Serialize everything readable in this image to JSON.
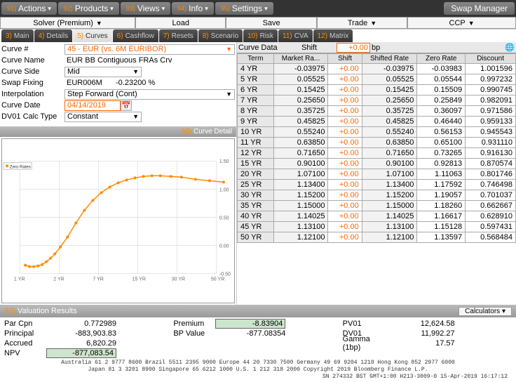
{
  "menubar": {
    "items": [
      {
        "num": "91)",
        "label": "Actions"
      },
      {
        "num": "92)",
        "label": "Products"
      },
      {
        "num": "93)",
        "label": "Views"
      },
      {
        "num": "94)",
        "label": "Info"
      },
      {
        "num": "95)",
        "label": "Settings"
      }
    ],
    "title": "Swap Manager"
  },
  "toolbar2": {
    "solver": "Solver (Premium)",
    "load": "Load",
    "save": "Save",
    "trade": "Trade",
    "ccp": "CCP"
  },
  "tabs": [
    {
      "num": "3)",
      "label": "Main"
    },
    {
      "num": "4)",
      "label": "Details"
    },
    {
      "num": "5)",
      "label": "Curves"
    },
    {
      "num": "6)",
      "label": "Cashflow"
    },
    {
      "num": "7)",
      "label": "Resets"
    },
    {
      "num": "8)",
      "label": "Scenario"
    },
    {
      "num": "10)",
      "label": "Risk"
    },
    {
      "num": "11)",
      "label": "CVA"
    },
    {
      "num": "12)",
      "label": "Matrix"
    }
  ],
  "active_tab_index": 2,
  "form": {
    "curve_num_label": "Curve #",
    "curve_num": "45 - EUR (vs. 6M EURIBOR)",
    "curve_name_label": "Curve Name",
    "curve_name": "EUR BB Contiguous FRAs Crv",
    "curve_side_label": "Curve Side",
    "curve_side": "Mid",
    "swap_fixing_label": "Swap Fixing",
    "swap_fixing": "EUR006M",
    "swap_fixing_rate": "-0.23200 %",
    "interpolation_label": "Interpolation",
    "interpolation": "Step Forward (Cont)",
    "curve_date_label": "Curve Date",
    "curve_date": "04/14/2019",
    "dv01_label": "DV01 Calc Type",
    "dv01": "Constant"
  },
  "chart": {
    "title_num": "96)",
    "title": "Curve Detail",
    "legend": "Zero Rates",
    "x_labels": [
      "1 YR",
      "2 YR",
      "7 YR",
      "15 YR",
      "30 YR",
      "50 YR"
    ],
    "y_labels": [
      "1.50",
      "1.00",
      "0.50",
      "0.00",
      "-0.50"
    ],
    "series_color": "#ff8c00",
    "grid_color": "#cccccc",
    "points": [
      [
        8,
        148
      ],
      [
        14,
        150
      ],
      [
        20,
        150
      ],
      [
        26,
        149
      ],
      [
        32,
        147
      ],
      [
        38,
        143
      ],
      [
        44,
        138
      ],
      [
        50,
        132
      ],
      [
        58,
        122
      ],
      [
        68,
        108
      ],
      [
        80,
        88
      ],
      [
        92,
        70
      ],
      [
        104,
        56
      ],
      [
        116,
        45
      ],
      [
        128,
        37
      ],
      [
        140,
        31
      ],
      [
        152,
        27
      ],
      [
        164,
        24
      ],
      [
        176,
        22
      ],
      [
        188,
        21
      ],
      [
        200,
        21
      ],
      [
        215,
        22
      ],
      [
        230,
        23
      ],
      [
        250,
        26
      ],
      [
        270,
        28
      ],
      [
        290,
        30
      ]
    ]
  },
  "curve_data": {
    "hdr_left": "Curve Data",
    "hdr_shift": "Shift",
    "hdr_shift_val": "+0.00",
    "hdr_bp": "bp",
    "columns": [
      "Term",
      "Market Ra...",
      "Shift",
      "Shifted Rate",
      "Zero Rate",
      "Discount"
    ],
    "rows": [
      [
        "4 YR",
        "-0.03975",
        "+0.00",
        "-0.03975",
        "-0.03983",
        "1.001596"
      ],
      [
        "5 YR",
        "0.05525",
        "+0.00",
        "0.05525",
        "0.05544",
        "0.997232"
      ],
      [
        "6 YR",
        "0.15425",
        "+0.00",
        "0.15425",
        "0.15509",
        "0.990745"
      ],
      [
        "7 YR",
        "0.25650",
        "+0.00",
        "0.25650",
        "0.25849",
        "0.982091"
      ],
      [
        "8 YR",
        "0.35725",
        "+0.00",
        "0.35725",
        "0.36097",
        "0.971586"
      ],
      [
        "9 YR",
        "0.45825",
        "+0.00",
        "0.45825",
        "0.46440",
        "0.959133"
      ],
      [
        "10 YR",
        "0.55240",
        "+0.00",
        "0.55240",
        "0.56153",
        "0.945543"
      ],
      [
        "11 YR",
        "0.63850",
        "+0.00",
        "0.63850",
        "0.65100",
        "0.931110"
      ],
      [
        "12 YR",
        "0.71650",
        "+0.00",
        "0.71650",
        "0.73265",
        "0.916130"
      ],
      [
        "15 YR",
        "0.90100",
        "+0.00",
        "0.90100",
        "0.92813",
        "0.870574"
      ],
      [
        "20 YR",
        "1.07100",
        "+0.00",
        "1.07100",
        "1.11063",
        "0.801746"
      ],
      [
        "25 YR",
        "1.13400",
        "+0.00",
        "1.13400",
        "1.17592",
        "0.746498"
      ],
      [
        "30 YR",
        "1.15200",
        "+0.00",
        "1.15200",
        "1.19057",
        "0.701037"
      ],
      [
        "35 YR",
        "1.15000",
        "+0.00",
        "1.15000",
        "1.18260",
        "0.662667"
      ],
      [
        "40 YR",
        "1.14025",
        "+0.00",
        "1.14025",
        "1.16617",
        "0.628910"
      ],
      [
        "45 YR",
        "1.13100",
        "+0.00",
        "1.13100",
        "1.15128",
        "0.597431"
      ],
      [
        "50 YR",
        "1.12100",
        "+0.00",
        "1.12100",
        "1.13597",
        "0.568484"
      ]
    ]
  },
  "valuation": {
    "title_num": "97)",
    "title": "Valuation Results",
    "calc_btn": "Calculators",
    "col1": [
      {
        "label": "Par Cpn",
        "value": "0.772989"
      },
      {
        "label": "Principal",
        "value": "-883,903.83"
      },
      {
        "label": "Accrued",
        "value": "6,820.29"
      },
      {
        "label": "NPV",
        "value": "-877,083.54",
        "box": true
      }
    ],
    "col2": [
      {
        "label": "Premium",
        "value": "-8.83904",
        "box": true
      },
      {
        "label": "BP Value",
        "value": "-877.08354"
      }
    ],
    "col3": [
      {
        "label": "PV01",
        "value": "12,624.58"
      },
      {
        "label": "DV01",
        "value": "11,992.27"
      },
      {
        "label": "Gamma (1bp)",
        "value": "17.57"
      }
    ]
  },
  "footer": {
    "l1": "Australia 61 2 9777 8600 Brazil 5511 2395 9000 Europe 44 20 7330 7500 Germany 49 69 9204 1210 Hong Kong 852 2977 6000",
    "l2": "Japan 81 3 3201 8900      Singapore 65 6212 1000       U.S. 1 212 318 2000      Copyright 2019 Bloomberg Finance L.P.",
    "l3": "SN 274332 BST  GMT+1:00 H213-3009-0 15-Apr-2019 16:17:12"
  }
}
